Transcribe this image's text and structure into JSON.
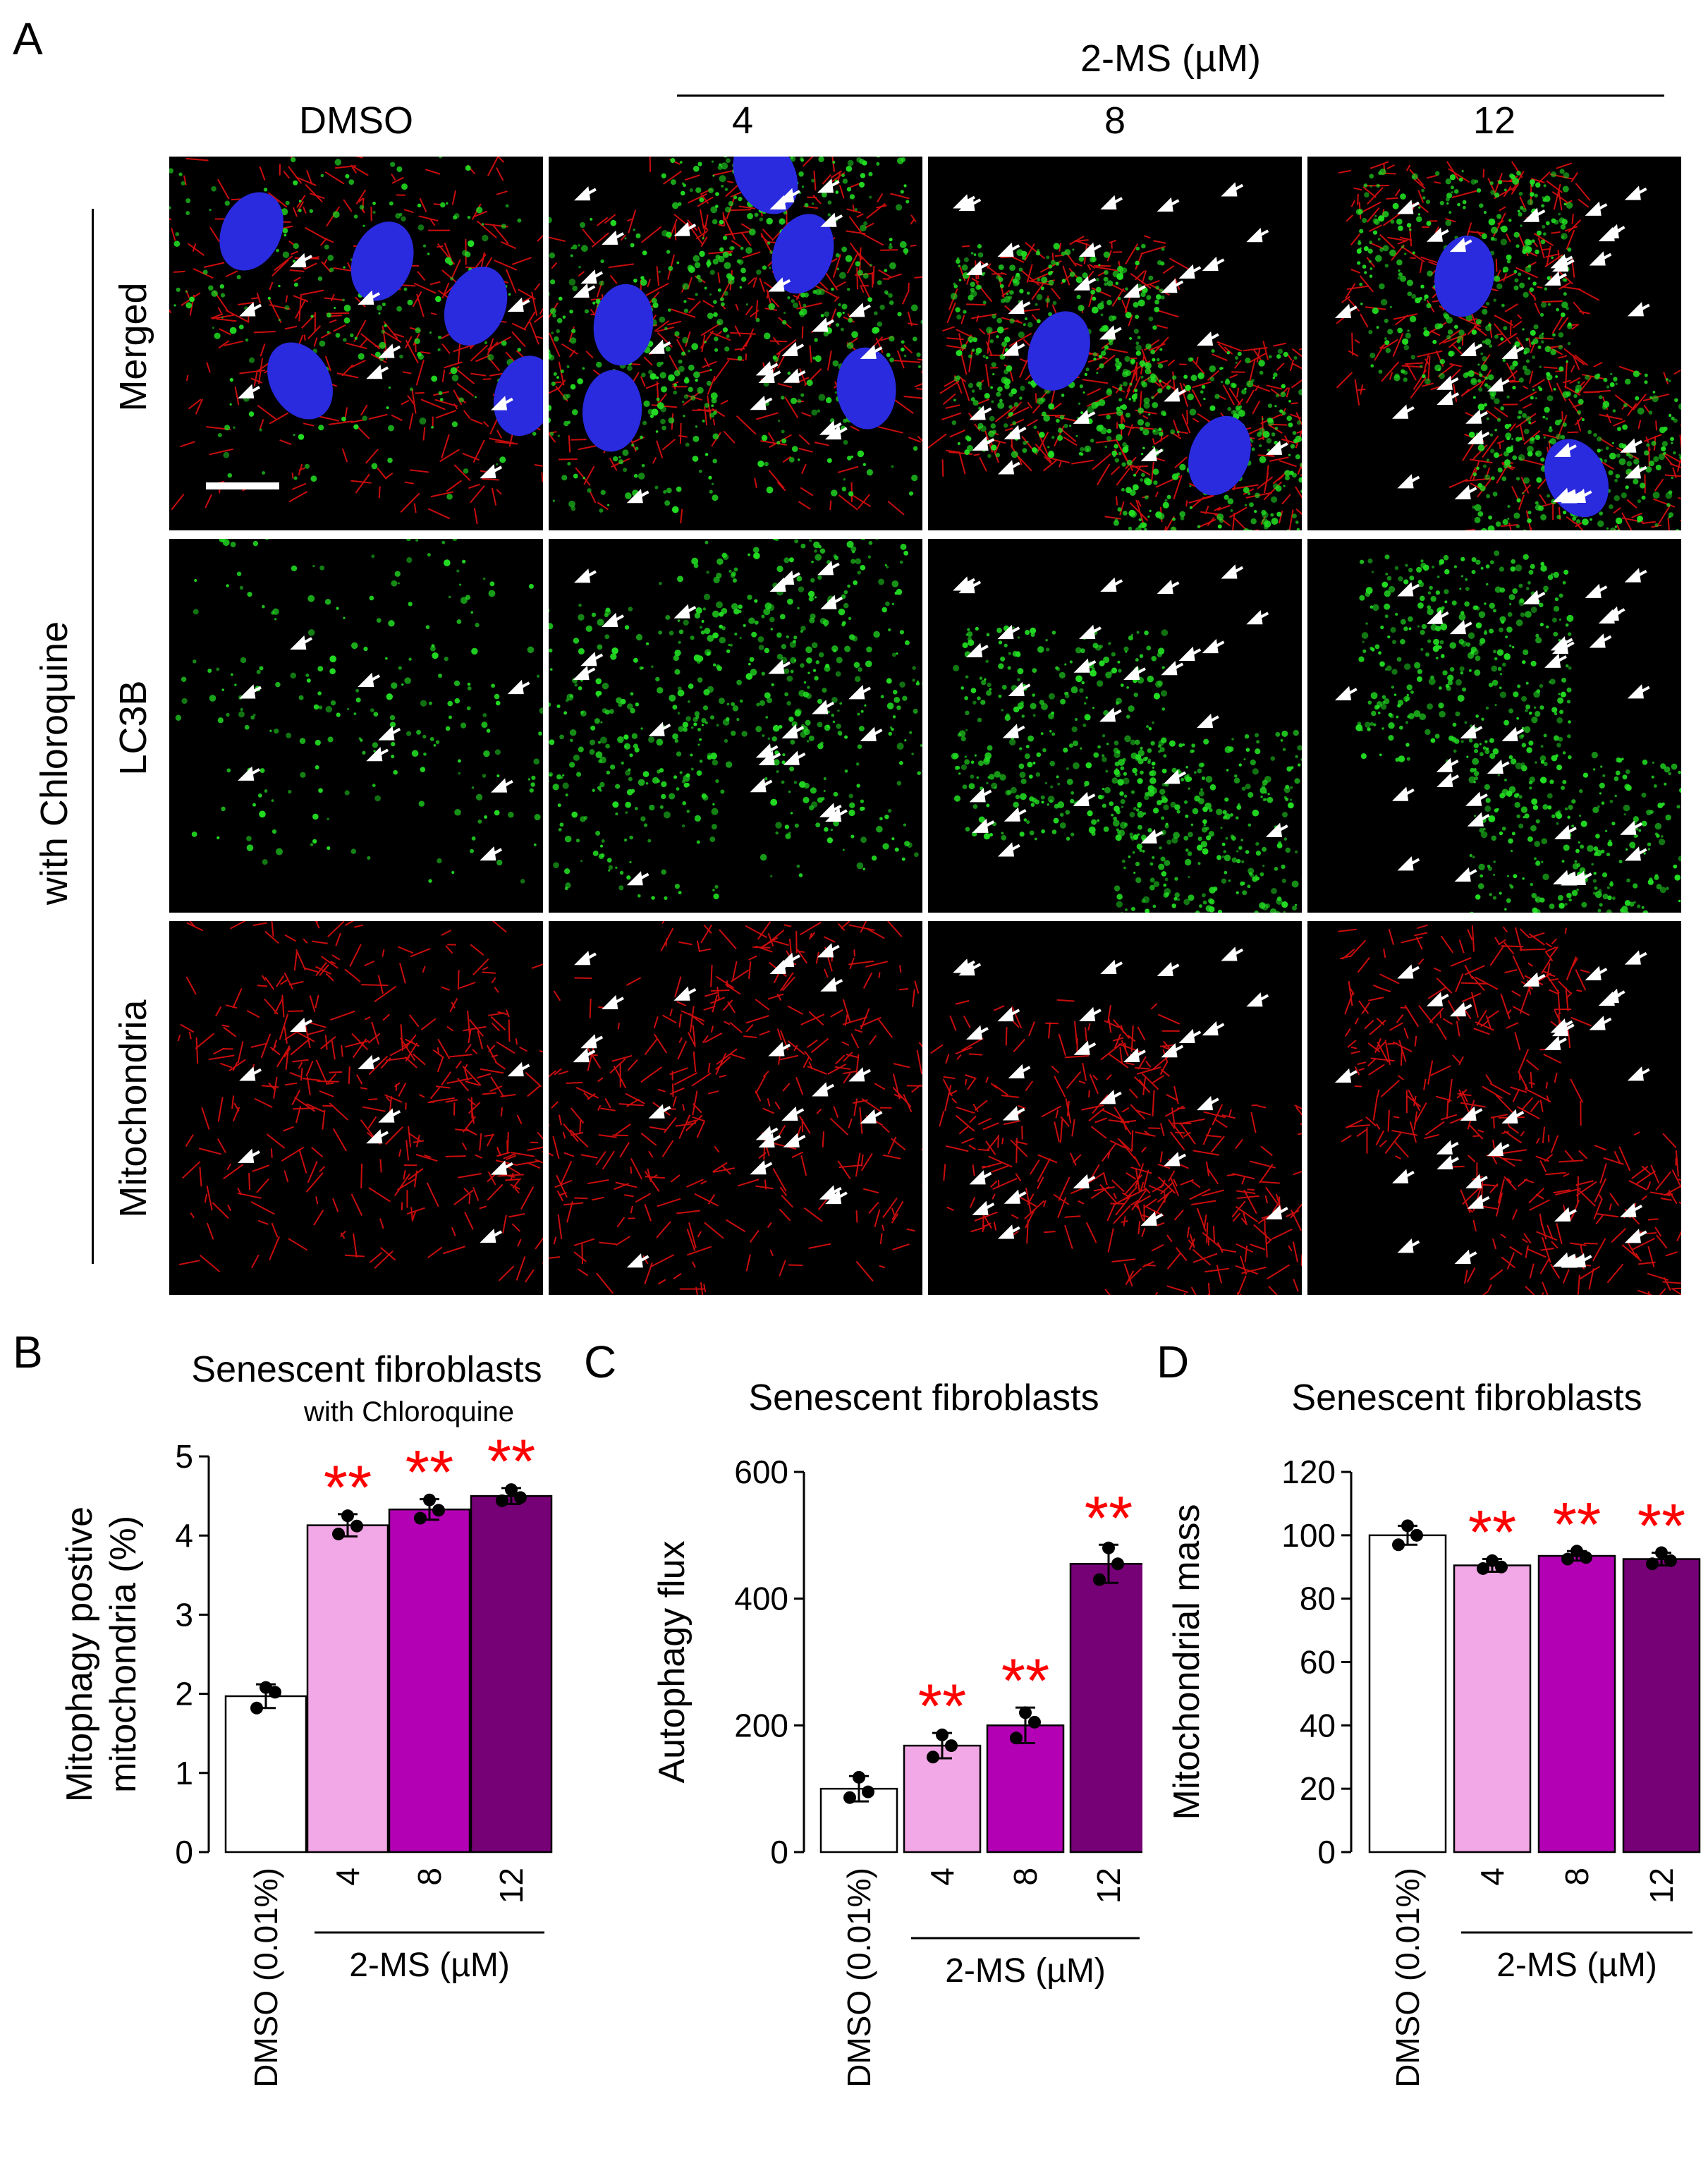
{
  "panel_a": {
    "label": "A",
    "treatment_label": "2-MS (µM)",
    "columns": [
      "DMSO",
      "4",
      "8",
      "12"
    ],
    "group_label": "with Chloroquine",
    "rows": [
      "Merged",
      "LC3B",
      "Mitochondria"
    ],
    "colors": {
      "nucleus": "#2a2adf",
      "lc3b": "#22dd22",
      "mito": "#ee1010",
      "arrow": "#ffffff"
    }
  },
  "chart_data": [
    {
      "panel": "B",
      "type": "bar",
      "title": "Senescent fibroblasts",
      "subtitle": "with Chloroquine",
      "ylabel": [
        "Mitophagy postive",
        "mitochondria (%)"
      ],
      "ylim": [
        0,
        5
      ],
      "yticks": [
        "0",
        "1",
        "2",
        "3",
        "4",
        "5"
      ],
      "categories": [
        "DMSO (0.01%)",
        "4",
        "8",
        "12"
      ],
      "group_label": "2-MS (µM)",
      "values": [
        1.97,
        4.13,
        4.33,
        4.5
      ],
      "errors": [
        0.15,
        0.14,
        0.13,
        0.1
      ],
      "points": [
        [
          2.08,
          1.82,
          2.02
        ],
        [
          4.25,
          4.02,
          4.12
        ],
        [
          4.45,
          4.22,
          4.32
        ],
        [
          4.58,
          4.44,
          4.48
        ]
      ],
      "significance": [
        "",
        "**",
        "**",
        "**"
      ],
      "bar_colors": [
        "#ffffff",
        "#f2a7e6",
        "#b400b4",
        "#760076"
      ]
    },
    {
      "panel": "C",
      "type": "bar",
      "title": "Senescent fibroblasts",
      "ylabel": [
        "Autophagy flux"
      ],
      "ylim": [
        0,
        600
      ],
      "yticks": [
        "0",
        "200",
        "400",
        "600"
      ],
      "categories": [
        "DMSO (0.01%)",
        "4",
        "8",
        "12"
      ],
      "group_label": "2-MS (µM)",
      "values": [
        100,
        168,
        200,
        455
      ],
      "errors": [
        20,
        20,
        28,
        30
      ],
      "points": [
        [
          118,
          86,
          95
        ],
        [
          185,
          150,
          168
        ],
        [
          220,
          180,
          205
        ],
        [
          480,
          430,
          455
        ]
      ],
      "significance": [
        "",
        "**",
        "**",
        "**"
      ],
      "bar_colors": [
        "#ffffff",
        "#f2a7e6",
        "#b400b4",
        "#760076"
      ]
    },
    {
      "panel": "D",
      "type": "bar",
      "title": "Senescent fibroblasts",
      "ylabel": [
        "Mitochondrial mass"
      ],
      "ylim": [
        0,
        120
      ],
      "yticks": [
        "0",
        "20",
        "40",
        "60",
        "80",
        "100",
        "120"
      ],
      "categories": [
        "DMSO (0.01%)",
        "4",
        "8",
        "12"
      ],
      "group_label": "2-MS (µM)",
      "values": [
        100,
        90.5,
        93.5,
        92.5
      ],
      "errors": [
        3,
        2,
        1.5,
        2
      ],
      "points": [
        [
          103,
          97,
          100
        ],
        [
          92,
          89.5,
          90
        ],
        [
          95,
          92.5,
          93
        ],
        [
          94.5,
          91,
          92
        ]
      ],
      "significance": [
        "",
        "**",
        "**",
        "**"
      ],
      "bar_colors": [
        "#ffffff",
        "#f2a7e6",
        "#b400b4",
        "#760076"
      ]
    }
  ]
}
